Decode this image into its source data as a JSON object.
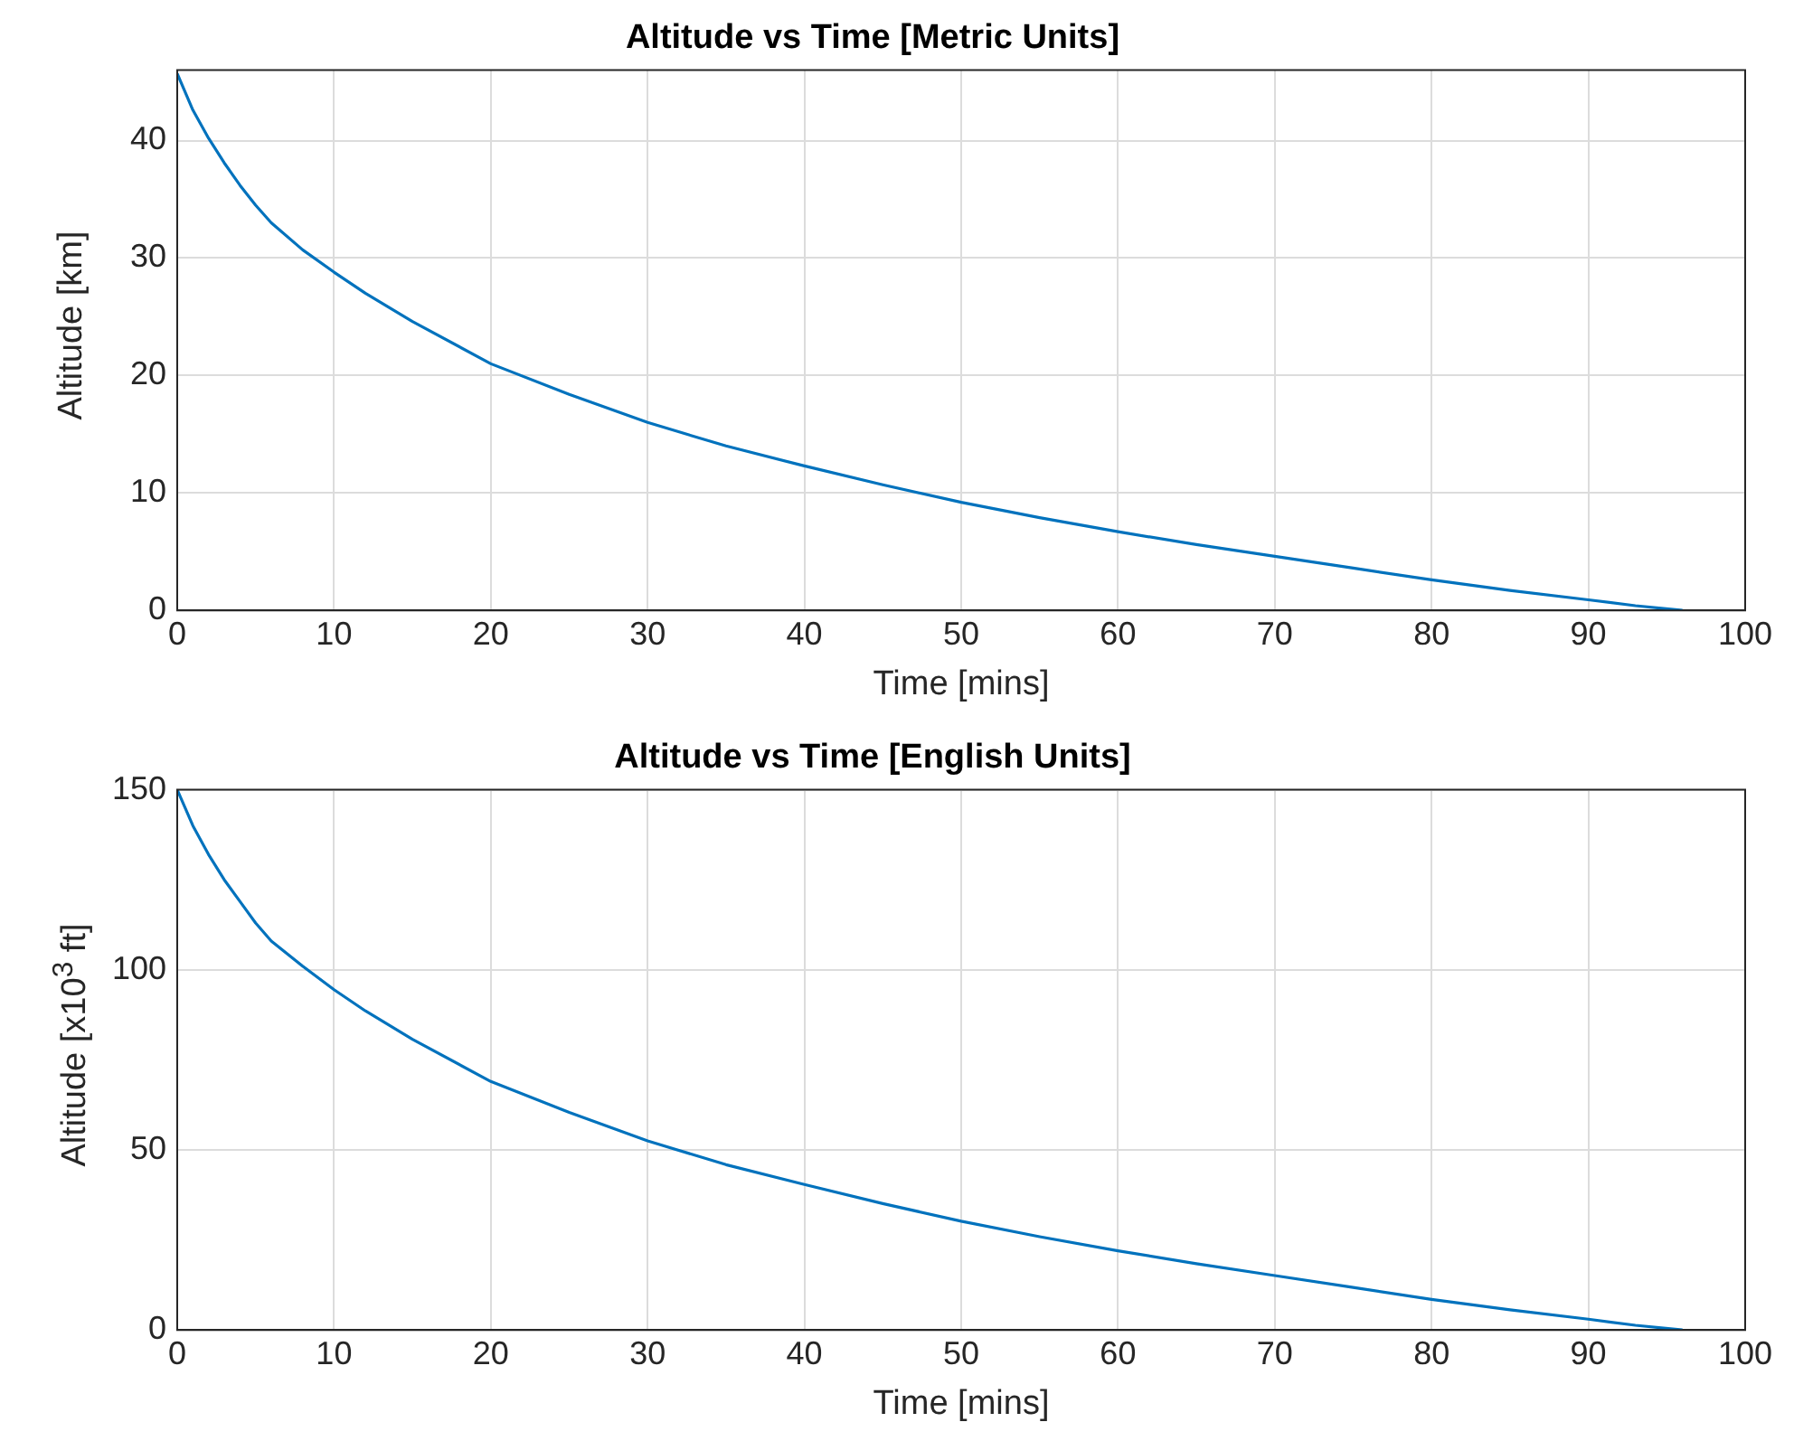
{
  "chart_data": [
    {
      "type": "line",
      "title": "Altitude vs Time [Metric Units]",
      "xlabel": "Time [mins]",
      "ylabel": "Altitude [km]",
      "series": [
        {
          "color": "#0072bd",
          "x": [
            0,
            1,
            2,
            3,
            4,
            5,
            6,
            8,
            10,
            12,
            15,
            20,
            25,
            30,
            35,
            40,
            45,
            50,
            55,
            60,
            65,
            70,
            75,
            80,
            85,
            90,
            93,
            96
          ],
          "values": [
            45.7,
            42.6,
            40.2,
            38.1,
            36.2,
            34.5,
            33,
            30.7,
            28.8,
            27,
            24.6,
            21,
            18.4,
            16,
            14,
            12.3,
            10.7,
            9.2,
            7.9,
            6.7,
            5.6,
            4.6,
            3.6,
            2.6,
            1.7,
            0.9,
            0.4,
            0
          ]
        }
      ],
      "xlim": [
        0,
        100
      ],
      "xticks": [
        0,
        10,
        20,
        30,
        40,
        50,
        60,
        70,
        80,
        90,
        100
      ],
      "ylim": [
        0,
        46
      ],
      "yticks": [
        0,
        10,
        20,
        30,
        40
      ],
      "grid": true,
      "legend": false,
      "marker": "none",
      "line_style": "solid"
    },
    {
      "type": "line",
      "title": "Altitude vs Time [English Units]",
      "xlabel": "Time [mins]",
      "ylabel": "Altitude [x10$^{3}$ ft]",
      "series": [
        {
          "color": "#0072bd",
          "x": [
            0,
            1,
            2,
            3,
            4,
            5,
            6,
            8,
            10,
            12,
            15,
            20,
            25,
            30,
            35,
            40,
            45,
            50,
            55,
            60,
            65,
            70,
            75,
            80,
            85,
            90,
            93,
            96
          ],
          "values": [
            150,
            140,
            132,
            125,
            119,
            113,
            108,
            101,
            94.5,
            88.6,
            80.7,
            69,
            60.4,
            52.5,
            45.9,
            40.4,
            35.1,
            30.2,
            25.9,
            22,
            18.4,
            15.1,
            11.8,
            8.5,
            5.6,
            3,
            1.3,
            0
          ]
        }
      ],
      "xlim": [
        0,
        100
      ],
      "xticks": [
        0,
        10,
        20,
        30,
        40,
        50,
        60,
        70,
        80,
        90,
        100
      ],
      "ylim": [
        0,
        150
      ],
      "yticks": [
        0,
        50,
        100,
        150
      ],
      "grid": true,
      "legend": false,
      "marker": "none",
      "line_style": "solid"
    }
  ]
}
